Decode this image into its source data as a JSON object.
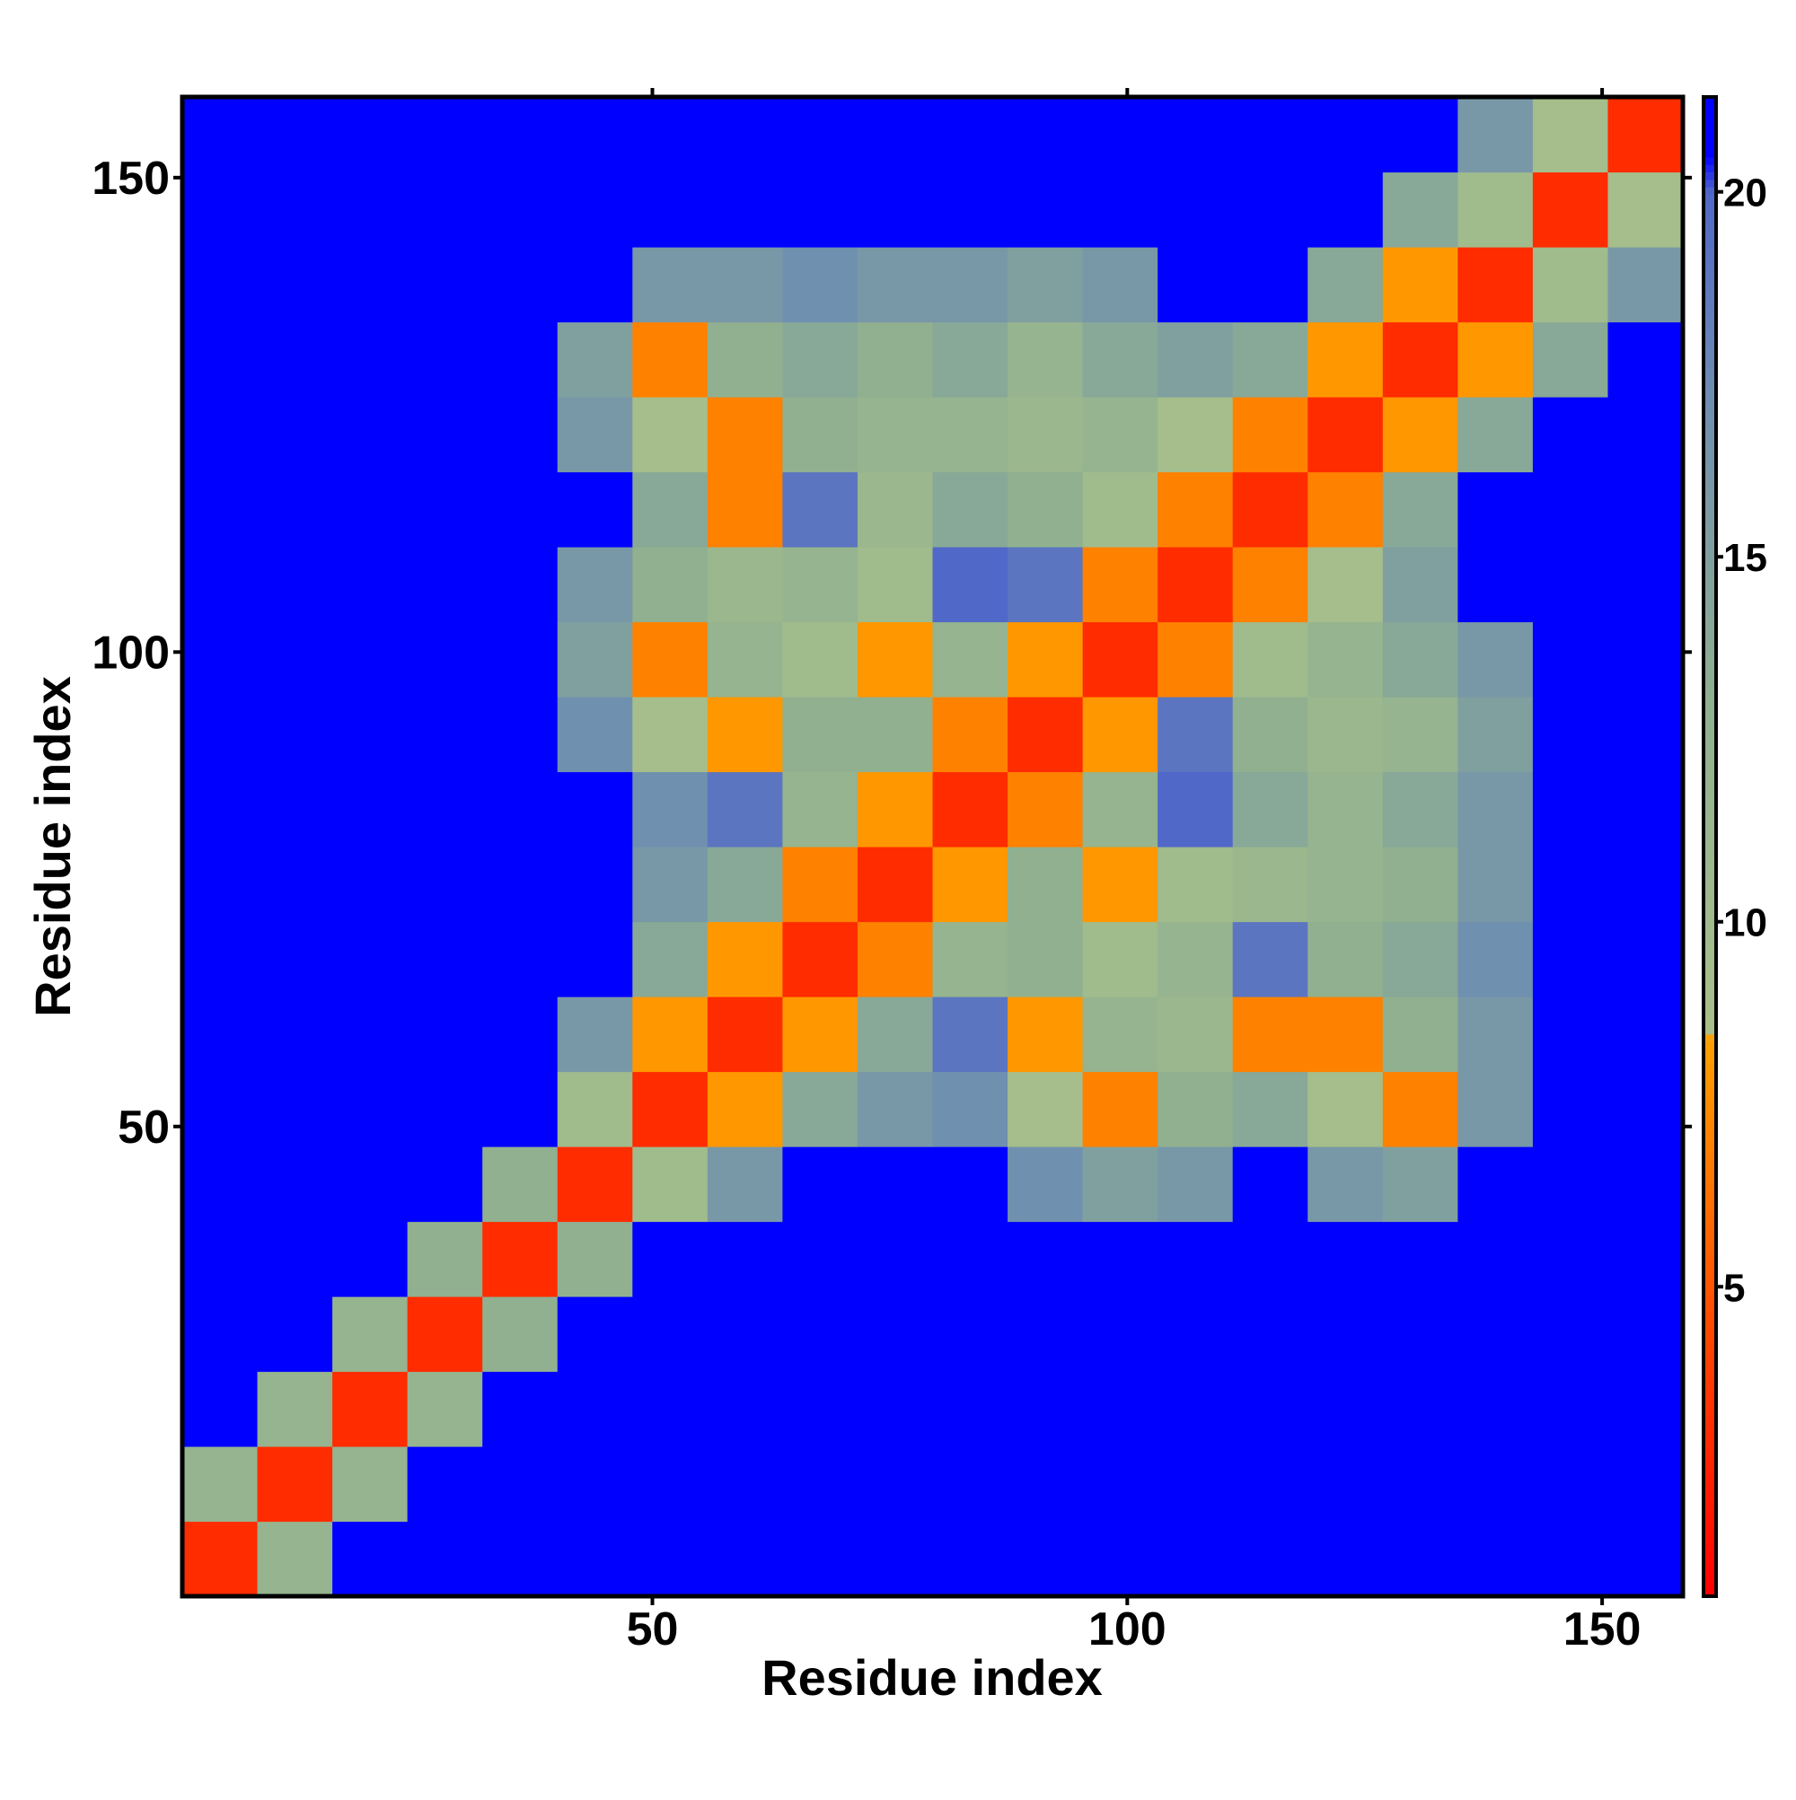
{
  "chart_data": {
    "type": "heatmap",
    "x_label": "Residue index",
    "y_label": "Residue index",
    "xlim": [
      0.5,
      158.5
    ],
    "ylim": [
      0.5,
      158.5
    ],
    "xticks": [
      50,
      100,
      150
    ],
    "yticks": [
      50,
      100,
      150
    ],
    "xbins": [
      0.5,
      8.4,
      16.3,
      24.2,
      32.1,
      40,
      47.9,
      55.8,
      63.7,
      71.6,
      79.5,
      87.4,
      95.3,
      103.2,
      111.1,
      119,
      126.9,
      134.8,
      142.7,
      150.6,
      158.5
    ],
    "ybins": [
      0.5,
      8.4,
      16.3,
      24.2,
      32.1,
      40,
      47.9,
      55.8,
      63.7,
      71.6,
      79.5,
      87.4,
      95.3,
      103.2,
      111.1,
      119,
      126.9,
      134.8,
      142.7,
      150.6,
      158.5
    ],
    "z": [
      [
        3,
        12,
        21,
        21,
        21,
        21,
        21,
        21,
        21,
        21,
        21,
        21,
        21,
        21,
        21,
        21,
        21,
        21,
        21,
        21
      ],
      [
        12,
        3,
        12,
        21,
        21,
        21,
        21,
        21,
        21,
        21,
        21,
        21,
        21,
        21,
        21,
        21,
        21,
        21,
        21,
        21
      ],
      [
        21,
        12,
        3,
        12,
        21,
        21,
        21,
        21,
        21,
        21,
        21,
        21,
        21,
        21,
        21,
        21,
        21,
        21,
        21,
        21
      ],
      [
        21,
        21,
        12,
        3,
        13,
        21,
        21,
        21,
        21,
        21,
        21,
        21,
        21,
        21,
        21,
        21,
        21,
        21,
        21,
        21
      ],
      [
        21,
        21,
        21,
        13,
        3,
        13,
        21,
        21,
        21,
        21,
        21,
        21,
        21,
        21,
        21,
        21,
        21,
        21,
        21,
        21
      ],
      [
        21,
        21,
        21,
        21,
        13,
        3,
        10,
        16,
        21,
        21,
        21,
        17,
        15,
        16,
        21,
        16,
        15,
        21,
        21,
        21
      ],
      [
        21,
        21,
        21,
        21,
        21,
        10,
        3,
        8,
        14,
        16,
        17,
        9,
        7,
        13,
        14,
        9,
        7,
        16,
        21,
        21
      ],
      [
        21,
        21,
        21,
        21,
        21,
        16,
        8,
        3,
        8,
        14,
        19,
        8,
        12,
        11,
        7,
        7,
        13,
        16,
        21,
        21
      ],
      [
        21,
        21,
        21,
        21,
        21,
        21,
        14,
        8,
        3,
        7,
        12,
        13,
        10,
        12,
        19,
        13,
        14,
        17,
        21,
        21
      ],
      [
        21,
        21,
        21,
        21,
        21,
        21,
        16,
        14,
        7,
        3,
        8,
        13,
        8,
        10,
        11,
        12,
        13,
        16,
        21,
        21
      ],
      [
        21,
        21,
        21,
        21,
        21,
        21,
        17,
        19,
        12,
        8,
        3,
        7,
        12,
        20,
        14,
        12,
        14,
        16,
        21,
        21
      ],
      [
        21,
        21,
        21,
        21,
        21,
        17,
        9,
        8,
        13,
        13,
        7,
        3,
        8,
        19,
        13,
        11,
        12,
        15,
        21,
        21
      ],
      [
        21,
        21,
        21,
        21,
        21,
        15,
        7,
        12,
        10,
        8,
        12,
        8,
        3,
        7,
        10,
        12,
        14,
        16,
        21,
        21
      ],
      [
        21,
        21,
        21,
        21,
        21,
        16,
        13,
        11,
        12,
        10,
        20,
        19,
        7,
        3,
        7,
        9,
        15,
        21,
        21,
        21
      ],
      [
        21,
        21,
        21,
        21,
        21,
        21,
        14,
        7,
        19,
        11,
        14,
        13,
        10,
        7,
        3,
        7,
        14,
        21,
        21,
        21
      ],
      [
        21,
        21,
        21,
        21,
        21,
        16,
        9,
        7,
        13,
        12,
        12,
        11,
        12,
        9,
        7,
        3,
        8,
        14,
        21,
        21
      ],
      [
        21,
        21,
        21,
        21,
        21,
        15,
        7,
        13,
        14,
        13,
        14,
        12,
        14,
        15,
        14,
        8,
        3,
        8,
        14,
        21
      ],
      [
        21,
        21,
        21,
        21,
        21,
        21,
        16,
        16,
        17,
        16,
        16,
        15,
        16,
        21,
        21,
        14,
        8,
        3,
        10,
        16
      ],
      [
        21,
        21,
        21,
        21,
        21,
        21,
        21,
        21,
        21,
        21,
        21,
        21,
        21,
        21,
        21,
        21,
        14,
        10,
        3,
        9
      ],
      [
        21,
        21,
        21,
        21,
        21,
        21,
        21,
        21,
        21,
        21,
        21,
        21,
        21,
        21,
        21,
        21,
        21,
        16,
        9,
        3
      ]
    ],
    "zlim": [
      0.76,
      21.3
    ],
    "zticks": [
      5,
      10,
      15,
      20
    ],
    "colorscale": [
      [
        0.76,
        "#ff0000"
      ],
      [
        4,
        "#ff4000"
      ],
      [
        8.4,
        "#ffa000"
      ],
      [
        8.5,
        "#a8c08a"
      ],
      [
        13,
        "#90b090"
      ],
      [
        17,
        "#7090b0"
      ],
      [
        20,
        "#5068c8"
      ],
      [
        20.5,
        "#0000ff"
      ],
      [
        21.3,
        "#0000ff"
      ]
    ]
  }
}
